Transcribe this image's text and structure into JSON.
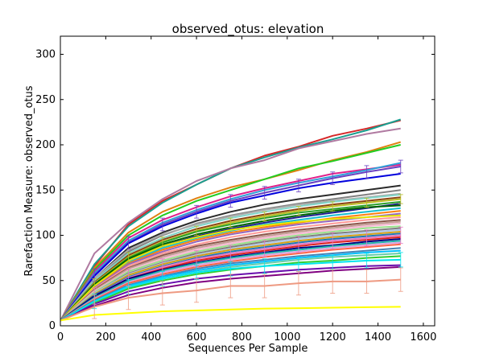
{
  "chart_data": {
    "type": "line",
    "title": "observed_otus: elevation",
    "xlabel": "Sequences Per Sample",
    "ylabel": "Rarefaction Measure: observed_otus",
    "xlim": [
      0,
      1650
    ],
    "ylim": [
      0,
      320
    ],
    "x_ticks": [
      0,
      200,
      400,
      600,
      800,
      1000,
      1200,
      1400,
      1600
    ],
    "y_ticks": [
      0,
      50,
      100,
      150,
      200,
      250,
      300
    ],
    "grid": false,
    "legend": "none",
    "error_bars": true,
    "x": [
      1,
      150,
      300,
      450,
      600,
      750,
      900,
      1050,
      1200,
      1350,
      1500
    ],
    "series": [
      {
        "color": "#d62728",
        "values": [
          6,
          66,
          112,
          138,
          156,
          174,
          188,
          198,
          210,
          218,
          227
        ]
      },
      {
        "color": "#1a9e8f",
        "values": [
          6,
          68,
          110,
          136,
          156,
          174,
          186,
          197,
          206,
          216,
          228
        ]
      },
      {
        "color": "#b07aa1",
        "values": [
          6,
          80,
          114,
          140,
          160,
          174,
          183,
          196,
          204,
          212,
          218
        ]
      },
      {
        "color": "#e08010",
        "values": [
          6,
          64,
          103,
          126,
          141,
          153,
          162,
          172,
          183,
          192,
          203
        ]
      },
      {
        "color": "#22cc22",
        "values": [
          6,
          62,
          100,
          122,
          138,
          150,
          162,
          174,
          182,
          191,
          200
        ]
      },
      {
        "color": "#e0208a",
        "values": [
          6,
          60,
          97,
          117,
          131,
          143,
          152,
          160,
          168,
          173,
          178
        ]
      },
      {
        "color": "#2f9fd8",
        "values": [
          6,
          58,
          94,
          114,
          128,
          140,
          150,
          158,
          165,
          172,
          180
        ]
      },
      {
        "color": "#6a3fc0",
        "values": [
          6,
          56,
          92,
          112,
          126,
          138,
          147,
          155,
          163,
          170,
          176
        ]
      },
      {
        "color": "#0000dd",
        "values": [
          6,
          55,
          91,
          110,
          124,
          136,
          144,
          152,
          158,
          163,
          168
        ]
      },
      {
        "color": "#2a2a2a",
        "values": [
          6,
          52,
          86,
          103,
          116,
          126,
          134,
          140,
          145,
          150,
          155
        ]
      },
      {
        "color": "#808080",
        "values": [
          6,
          50,
          82,
          100,
          113,
          122,
          129,
          135,
          140,
          145,
          150
        ]
      },
      {
        "color": "#aaaaaa",
        "values": [
          6,
          52,
          84,
          101,
          112,
          121,
          128,
          134,
          138,
          142,
          146
        ]
      },
      {
        "color": "#7fd5c8",
        "values": [
          6,
          50,
          80,
          97,
          110,
          119,
          126,
          132,
          137,
          141,
          145
        ]
      },
      {
        "color": "#8b4513",
        "values": [
          6,
          48,
          78,
          95,
          107,
          116,
          123,
          129,
          134,
          138,
          142
        ]
      },
      {
        "color": "#bcbd22",
        "values": [
          6,
          47,
          76,
          93,
          105,
          114,
          121,
          127,
          132,
          136,
          140
        ]
      },
      {
        "color": "#2ca02c",
        "values": [
          6,
          46,
          75,
          92,
          104,
          112,
          119,
          125,
          129,
          133,
          137
        ]
      },
      {
        "color": "#1f1f8f",
        "values": [
          6,
          45,
          72,
          88,
          99,
          107,
          114,
          120,
          125,
          130,
          135
        ]
      },
      {
        "color": "#006400",
        "values": [
          6,
          46,
          74,
          90,
          101,
          109,
          116,
          122,
          127,
          131,
          133
        ]
      },
      {
        "color": "#17becf",
        "values": [
          6,
          44,
          70,
          86,
          97,
          105,
          112,
          117,
          122,
          126,
          130
        ]
      },
      {
        "color": "#ff7f0e",
        "values": [
          6,
          43,
          69,
          84,
          95,
          103,
          109,
          114,
          119,
          123,
          127
        ]
      },
      {
        "color": "#9467bd",
        "values": [
          6,
          42,
          68,
          82,
          93,
          101,
          107,
          112,
          116,
          120,
          124
        ]
      },
      {
        "color": "#e6e600",
        "values": [
          6,
          44,
          72,
          88,
          98,
          106,
          111,
          115,
          118,
          120,
          122
        ]
      },
      {
        "color": "#ff9896",
        "values": [
          6,
          41,
          66,
          80,
          90,
          98,
          104,
          109,
          113,
          117,
          120
        ]
      },
      {
        "color": "#8c564b",
        "values": [
          6,
          40,
          64,
          78,
          88,
          95,
          101,
          106,
          110,
          114,
          117
        ]
      },
      {
        "color": "#c49c94",
        "values": [
          6,
          39,
          63,
          76,
          86,
          93,
          99,
          104,
          108,
          112,
          115
        ]
      },
      {
        "color": "#f7b6d2",
        "values": [
          6,
          38,
          61,
          74,
          84,
          91,
          97,
          102,
          106,
          110,
          113
        ]
      },
      {
        "color": "#98df8a",
        "values": [
          6,
          37,
          60,
          72,
          82,
          89,
          95,
          100,
          104,
          108,
          110
        ]
      },
      {
        "color": "#7f7f7f",
        "values": [
          6,
          36,
          58,
          70,
          80,
          87,
          93,
          98,
          102,
          105,
          108
        ]
      },
      {
        "color": "#aec7e8",
        "values": [
          6,
          36,
          57,
          69,
          78,
          85,
          91,
          96,
          100,
          103,
          106
        ]
      },
      {
        "color": "#d4a017",
        "values": [
          6,
          35,
          56,
          68,
          77,
          84,
          89,
          94,
          98,
          101,
          104
        ]
      },
      {
        "color": "#1f77b4",
        "values": [
          6,
          34,
          54,
          66,
          75,
          82,
          87,
          92,
          96,
          99,
          102
        ]
      },
      {
        "color": "#e377c2",
        "values": [
          6,
          33,
          53,
          65,
          74,
          80,
          85,
          90,
          94,
          97,
          100
        ]
      },
      {
        "color": "#dd2020",
        "values": [
          6,
          32,
          52,
          63,
          72,
          78,
          83,
          88,
          92,
          95,
          98
        ]
      },
      {
        "color": "#000080",
        "values": [
          6,
          33,
          52,
          62,
          70,
          76,
          81,
          86,
          89,
          93,
          96
        ]
      },
      {
        "color": "#20b2aa",
        "values": [
          6,
          31,
          50,
          61,
          69,
          75,
          80,
          84,
          88,
          91,
          94
        ]
      },
      {
        "color": "#dda0dd",
        "values": [
          6,
          30,
          48,
          59,
          67,
          73,
          78,
          82,
          86,
          89,
          92
        ]
      },
      {
        "color": "#ff6347",
        "values": [
          6,
          29,
          47,
          57,
          65,
          71,
          76,
          80,
          84,
          87,
          90
        ]
      },
      {
        "color": "#4682b4",
        "values": [
          6,
          28,
          45,
          55,
          63,
          69,
          73,
          77,
          80,
          83,
          86
        ]
      },
      {
        "color": "#00bfff",
        "values": [
          6,
          27,
          44,
          54,
          61,
          67,
          71,
          75,
          78,
          81,
          83
        ]
      },
      {
        "color": "#66cdaa",
        "values": [
          6,
          26,
          42,
          52,
          59,
          65,
          69,
          73,
          76,
          78,
          80
        ]
      },
      {
        "color": "#32cd32",
        "values": [
          6,
          25,
          41,
          50,
          57,
          62,
          66,
          70,
          72,
          75,
          77
        ]
      },
      {
        "color": "#6a0dad",
        "values": [
          6,
          24,
          38,
          46,
          52,
          56,
          59,
          62,
          64,
          66,
          67
        ]
      },
      {
        "color": "#00e5ee",
        "values": [
          6,
          27,
          43,
          52,
          59,
          63,
          66,
          68,
          70,
          72,
          73
        ]
      },
      {
        "color": "#800080",
        "values": [
          6,
          22,
          34,
          42,
          48,
          52,
          55,
          58,
          61,
          63,
          65
        ]
      },
      {
        "color": "#ee9a82",
        "values": [
          6,
          21,
          31,
          36,
          39,
          44,
          44,
          47,
          49,
          49,
          51
        ]
      },
      {
        "color": "#ffff00",
        "values": [
          6,
          12,
          14,
          16,
          17,
          18,
          19,
          19.5,
          20,
          20.5,
          21
        ]
      }
    ],
    "error_bars_on": [
      {
        "series_index": 7,
        "err": 7
      },
      {
        "series_index": 14,
        "err": 5
      },
      {
        "series_index": 31,
        "err": 9
      },
      {
        "series_index": 42,
        "err": 8
      },
      {
        "series_index": 44,
        "err": 13
      }
    ]
  }
}
